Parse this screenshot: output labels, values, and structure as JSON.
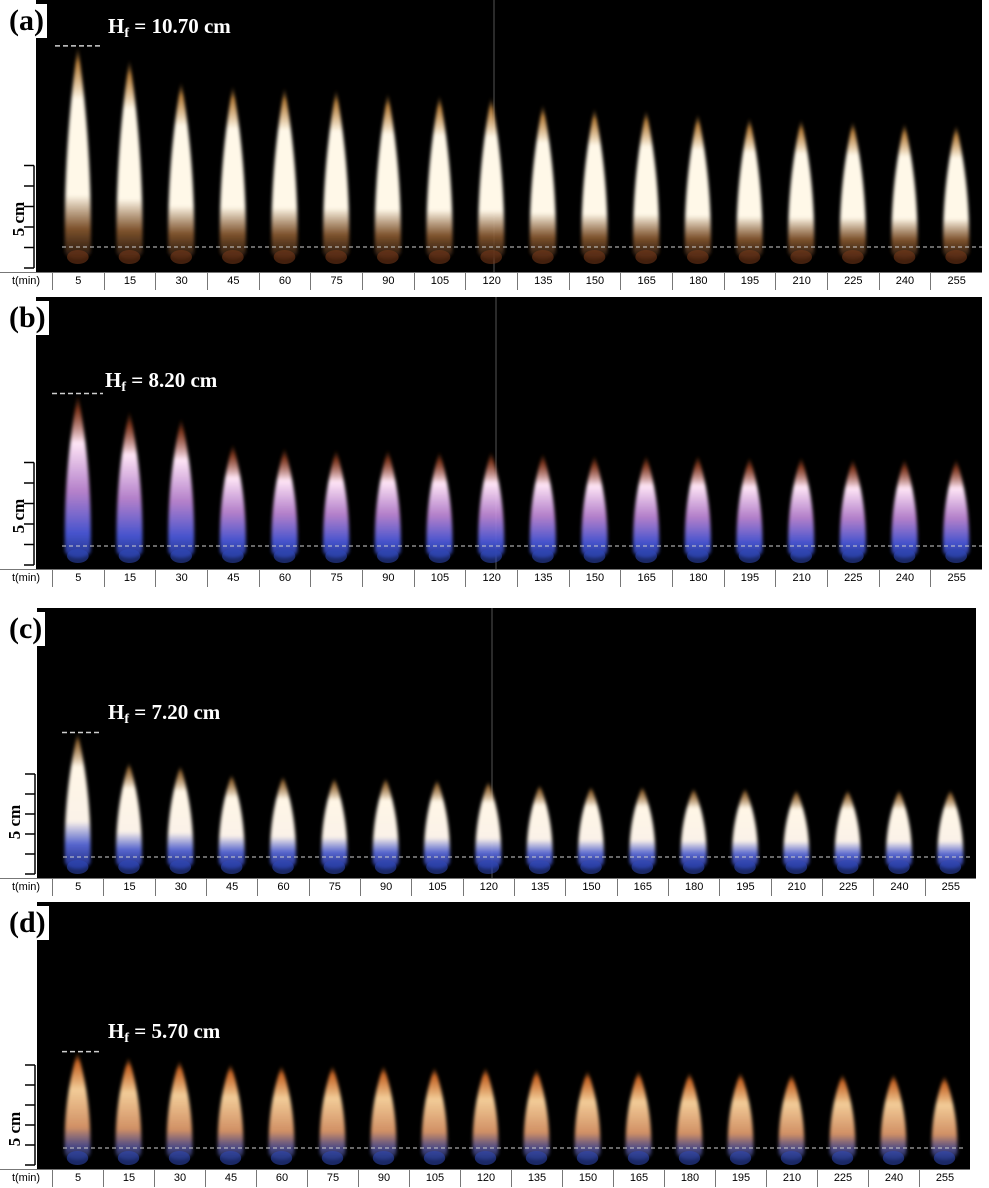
{
  "panels": [
    {
      "id": "a",
      "label": "(a)",
      "hf_value": "= 10.70 cm",
      "scale": "5 cm"
    },
    {
      "id": "b",
      "label": "(b)",
      "hf_value": "= 8.20 cm",
      "scale": "5 cm"
    },
    {
      "id": "c",
      "label": "(c)",
      "hf_value": "= 7.20 cm",
      "scale": "5 cm"
    },
    {
      "id": "d",
      "label": "(d)",
      "hf_value": "= 5.70 cm",
      "scale": "5 cm"
    }
  ],
  "hf_symbol": "H",
  "hf_sub": "f",
  "time_header": "t(min)",
  "times": [
    "5",
    "15",
    "30",
    "45",
    "60",
    "75",
    "90",
    "105",
    "120",
    "135",
    "150",
    "165",
    "180",
    "195",
    "210",
    "225",
    "240",
    "255"
  ],
  "flame_heights_cm": {
    "a": [
      10.7,
      10.0,
      8.8,
      8.6,
      8.5,
      8.4,
      8.2,
      8.1,
      8.0,
      7.6,
      7.4,
      7.3,
      7.1,
      6.9,
      6.8,
      6.7,
      6.6,
      6.5
    ],
    "b": [
      8.2,
      7.3,
      6.9,
      5.5,
      5.3,
      5.2,
      5.2,
      5.1,
      5.1,
      5.0,
      4.9,
      4.9,
      4.9,
      4.8,
      4.8,
      4.7,
      4.7,
      4.7
    ],
    "c": [
      7.2,
      5.5,
      5.3,
      4.8,
      4.7,
      4.6,
      4.6,
      4.5,
      4.4,
      4.2,
      4.1,
      4.1,
      4.0,
      4.0,
      3.9,
      3.9,
      3.9,
      3.9
    ],
    "d": [
      5.7,
      5.4,
      5.2,
      5.0,
      4.9,
      4.9,
      4.9,
      4.8,
      4.8,
      4.7,
      4.6,
      4.6,
      4.5,
      4.5,
      4.4,
      4.4,
      4.4,
      4.3
    ]
  },
  "colors": {
    "background": "#000000",
    "dashed_line": "#cfcfcf",
    "core_a": "#fff8e8",
    "core_b": "#ffe6f6",
    "core_c": "#fff6e6",
    "core_d": "#ffd7a0",
    "tip_a": "#e49f4c",
    "tip_b": "#b34e2a",
    "tip_c": "#ca8d47",
    "tip_d": "#e8762b",
    "base_blue": "#2a55d8"
  }
}
